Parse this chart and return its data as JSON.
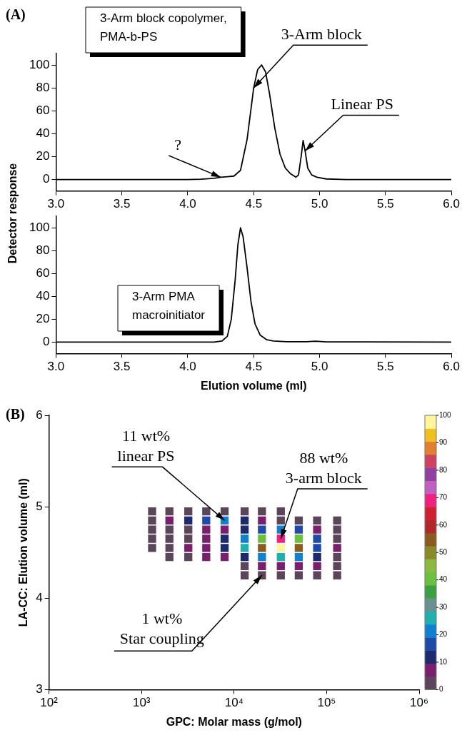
{
  "chart_data": [
    {
      "type": "line",
      "title": "(A)",
      "ylabel": "Detector response",
      "series": [
        {
          "color": "#000000",
          "x": [
            3,
            3.5,
            4,
            4.1,
            4.2,
            4.25,
            4.3,
            4.35,
            4.4,
            4.45,
            4.5,
            4.53,
            4.56,
            4.59,
            4.62,
            4.66,
            4.7,
            4.74,
            4.78,
            4.82,
            4.84,
            4.86,
            4.875,
            4.89,
            4.91,
            4.94,
            4.98,
            5.05,
            5.2,
            6
          ],
          "values": [
            0,
            0,
            0,
            0.3,
            1,
            2,
            2.5,
            3,
            8,
            35,
            80,
            96,
            100,
            94,
            75,
            45,
            22,
            10,
            5,
            2,
            4,
            20,
            34,
            25,
            10,
            4,
            2,
            0.5,
            0,
            0
          ]
        }
      ],
      "xlim": [
        3,
        6
      ],
      "xticks": [
        {
          "value": 3,
          "label": "3.0"
        },
        {
          "value": 3.5,
          "label": "3.5"
        },
        {
          "value": 4,
          "label": "4.0"
        },
        {
          "value": 4.5,
          "label": "4.5"
        },
        {
          "value": 5,
          "label": "5.0"
        },
        {
          "value": 5.5,
          "label": "5.5"
        },
        {
          "value": 6,
          "label": "6.0"
        }
      ],
      "ylim": [
        -10,
        110
      ],
      "yticks": [
        0,
        20,
        40,
        60,
        80,
        100
      ],
      "annotations": [
        "3-Arm block copolymer,\nPMA-b-PS",
        {
          "text": "3-Arm block",
          "x": 4.5,
          "y": 80
        },
        {
          "text": "Linear PS",
          "x": 4.89,
          "y": 25
        },
        {
          "text": "?",
          "x": 4.25,
          "y": 2
        }
      ],
      "legend": false,
      "grid": false,
      "marker": "none",
      "line_style": "solid"
    },
    {
      "type": "line",
      "xlabel": "Elution volume (ml)",
      "series": [
        {
          "color": "#000000",
          "x": [
            3,
            4.2,
            4.26,
            4.3,
            4.33,
            4.36,
            4.38,
            4.4,
            4.42,
            4.45,
            4.48,
            4.51,
            4.55,
            4.6,
            4.65,
            4.75,
            4.9,
            4.97,
            5.05,
            6
          ],
          "values": [
            0,
            0,
            1,
            5,
            20,
            55,
            85,
            100,
            92,
            65,
            35,
            16,
            6,
            2,
            1,
            0.3,
            0.3,
            0.8,
            0.2,
            0
          ]
        }
      ],
      "xlim": [
        3,
        6
      ],
      "xticks": [
        {
          "value": 3,
          "label": "3.0"
        },
        {
          "value": 3.5,
          "label": "3.5"
        },
        {
          "value": 4,
          "label": "4.0"
        },
        {
          "value": 4.5,
          "label": "4.5"
        },
        {
          "value": 5,
          "label": "5.0"
        },
        {
          "value": 5.5,
          "label": "5.5"
        },
        {
          "value": 6,
          "label": "6.0"
        }
      ],
      "ylim": [
        -10,
        110
      ],
      "yticks": [
        0,
        20,
        40,
        60,
        80,
        100
      ],
      "annotations": [
        "3-Arm PMA\nmacroinitiator"
      ],
      "legend": false,
      "grid": false,
      "marker": "none",
      "line_style": "solid"
    },
    {
      "type": "scatter",
      "title": "(B)",
      "xlabel": "GPC: Molar mass (g/mol)",
      "ylabel": "LA-CC: Elution volume (ml)",
      "log": "x",
      "xlim": [
        100,
        1000000
      ],
      "xticks": [
        {
          "value": 100,
          "label": "10²"
        },
        {
          "value": 1000,
          "label": "10³"
        },
        {
          "value": 10000,
          "label": "10⁴"
        },
        {
          "value": 100000,
          "label": "10⁵"
        },
        {
          "value": 1000000,
          "label": "10⁶"
        }
      ],
      "ylim": [
        3,
        6
      ],
      "yticks": [
        3,
        4,
        5,
        6
      ],
      "x": [
        1300,
        2000,
        3200,
        5000,
        7900,
        13000,
        20000,
        32000,
        1300,
        2000,
        3200,
        5000,
        7900,
        13000,
        20000,
        32000,
        50000,
        79000,
        130000,
        1300,
        2000,
        3200,
        5000,
        7900,
        13000,
        20000,
        32000,
        50000,
        79000,
        130000,
        1300,
        2000,
        3200,
        5000,
        7900,
        13000,
        20000,
        32000,
        50000,
        79000,
        130000,
        1300,
        2000,
        3200,
        5000,
        7900,
        13000,
        20000,
        32000,
        50000,
        79000,
        130000,
        2000,
        3200,
        5000,
        7900,
        13000,
        20000,
        32000,
        50000,
        79000,
        130000,
        13000,
        20000,
        32000,
        50000,
        79000,
        130000,
        13000,
        20000,
        32000,
        50000,
        79000,
        130000
      ],
      "values": [
        4.95,
        4.95,
        4.95,
        4.95,
        4.95,
        4.95,
        4.95,
        4.95,
        4.85,
        4.85,
        4.85,
        4.85,
        4.85,
        4.85,
        4.85,
        4.85,
        4.85,
        4.85,
        4.85,
        4.75,
        4.75,
        4.75,
        4.75,
        4.75,
        4.75,
        4.75,
        4.75,
        4.75,
        4.75,
        4.75,
        4.65,
        4.65,
        4.65,
        4.65,
        4.65,
        4.65,
        4.65,
        4.65,
        4.65,
        4.65,
        4.65,
        4.55,
        4.55,
        4.55,
        4.55,
        4.55,
        4.55,
        4.55,
        4.55,
        4.55,
        4.55,
        4.55,
        4.45,
        4.45,
        4.45,
        4.45,
        4.45,
        4.45,
        4.45,
        4.45,
        4.45,
        4.45,
        4.35,
        4.35,
        4.35,
        4.35,
        4.35,
        4.35,
        4.25,
        4.25,
        4.25,
        4.25,
        4.25,
        4.25
      ],
      "cvalues": [
        2,
        3,
        3,
        4,
        4,
        3,
        2,
        1,
        3,
        6,
        10,
        15,
        20,
        10,
        5,
        4,
        3,
        2,
        1,
        1,
        3,
        3,
        5,
        8,
        10,
        15,
        20,
        15,
        8,
        3,
        1,
        3,
        4,
        6,
        10,
        20,
        40,
        70,
        40,
        15,
        4,
        2,
        4,
        6,
        8,
        12,
        25,
        55,
        100,
        55,
        18,
        5,
        1,
        3,
        5,
        8,
        14,
        20,
        25,
        20,
        12,
        4,
        3,
        5,
        8,
        8,
        6,
        3,
        2,
        3,
        4,
        4,
        3,
        1
      ],
      "clim": [
        0,
        100
      ],
      "cticks": [
        0,
        10,
        20,
        30,
        40,
        50,
        60,
        70,
        80,
        90,
        100
      ],
      "marker": "square",
      "annotations": [
        {
          "text": "11 wt%\nlinear PS",
          "x": 7900,
          "y": 4.85
        },
        {
          "text": "88 wt%\n3-arm block",
          "x": 32000,
          "y": 4.65
        },
        {
          "text": "1 wt%\nStar coupling",
          "x": 20000,
          "y": 4.25
        }
      ],
      "legend": false,
      "grid": false
    }
  ]
}
